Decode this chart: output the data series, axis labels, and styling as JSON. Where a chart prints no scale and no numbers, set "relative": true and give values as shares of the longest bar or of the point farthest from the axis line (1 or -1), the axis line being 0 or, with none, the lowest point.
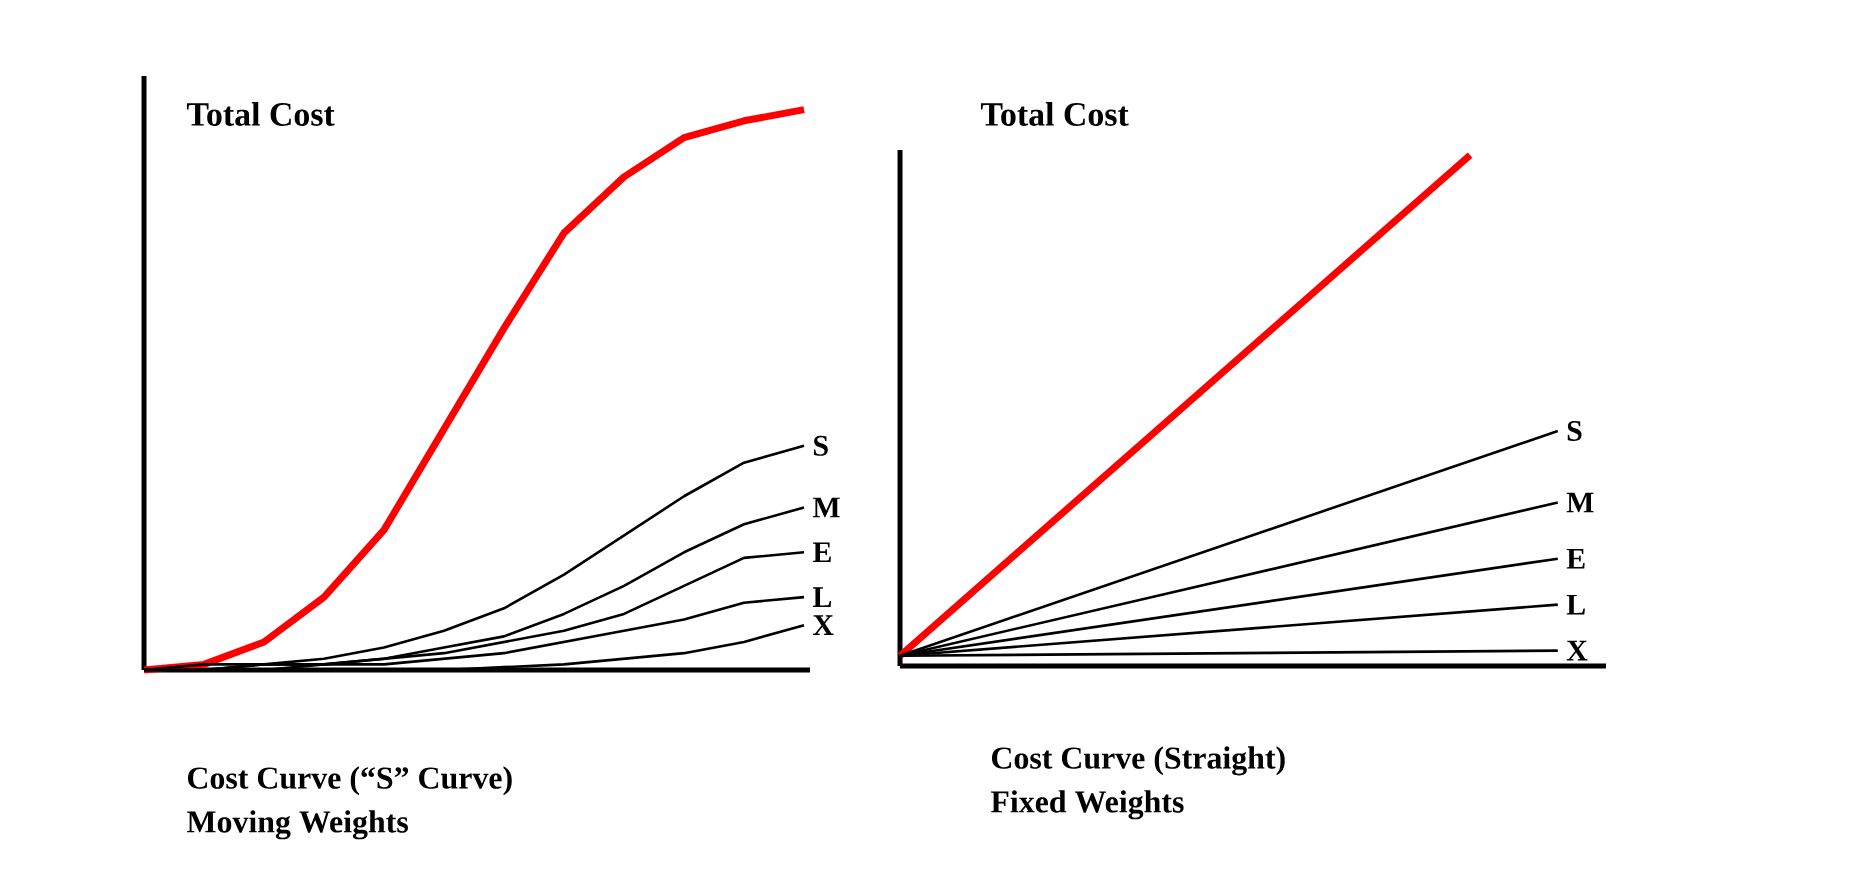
{
  "chart_data": [
    {
      "type": "line",
      "relative": true,
      "ylabel": "Total Cost",
      "title": "Cost Curve (“S” Curve)",
      "subtitle": "Moving Weights",
      "categories": [
        null,
        null,
        null,
        null,
        null,
        null,
        null,
        null,
        null,
        null,
        null,
        null
      ],
      "series": [
        {
          "color": "#ff0000",
          "values": [
            0,
            0.01,
            0.05,
            0.13,
            0.25,
            0.43,
            0.61,
            0.78,
            0.88,
            0.95,
            0.98,
            1
          ]
        },
        {
          "name": "S",
          "color": "#000000",
          "values": [
            0,
            0.01,
            0.01,
            0.02,
            0.04,
            0.07,
            0.11,
            0.17,
            0.24,
            0.31,
            0.37,
            0.4
          ]
        },
        {
          "name": "M",
          "color": "#000000",
          "values": [
            0,
            0,
            0.01,
            0.01,
            0.02,
            0.04,
            0.06,
            0.1,
            0.15,
            0.21,
            0.26,
            0.29
          ]
        },
        {
          "name": "E",
          "color": "#000000",
          "values": [
            0,
            0,
            0.01,
            0.01,
            0.02,
            0.03,
            0.05,
            0.07,
            0.1,
            0.15,
            0.2,
            0.21
          ]
        },
        {
          "name": "L",
          "color": "#000000",
          "values": [
            0,
            0,
            0,
            0.01,
            0.01,
            0.02,
            0.03,
            0.05,
            0.07,
            0.09,
            0.12,
            0.13
          ]
        },
        {
          "name": "X",
          "color": "#000000",
          "values": [
            0,
            0,
            0,
            0,
            0,
            0,
            0.005,
            0.01,
            0.02,
            0.03,
            0.05,
            0.08
          ]
        }
      ]
    },
    {
      "type": "line",
      "relative": true,
      "ylabel": "Total Cost",
      "title": "Cost Curve (Straight)",
      "subtitle": "Fixed Weights",
      "categories": [
        null,
        null,
        null,
        null,
        null,
        null,
        null,
        null,
        null,
        null,
        null,
        null,
        null,
        null,
        null,
        null
      ],
      "series": [
        {
          "color": "#ff0000",
          "values": [
            0.02,
            null,
            null,
            null,
            null,
            null,
            null,
            null,
            null,
            null,
            null,
            null,
            null,
            1,
            null,
            null
          ]
        },
        {
          "name": "S",
          "color": "#000000",
          "values": [
            0.02,
            null,
            null,
            null,
            null,
            null,
            null,
            null,
            null,
            null,
            null,
            null,
            null,
            null,
            null,
            0.46
          ]
        },
        {
          "name": "M",
          "color": "#000000",
          "values": [
            0.02,
            null,
            null,
            null,
            null,
            null,
            null,
            null,
            null,
            null,
            null,
            null,
            null,
            null,
            null,
            0.32
          ]
        },
        {
          "name": "E",
          "color": "#000000",
          "values": [
            0.02,
            null,
            null,
            null,
            null,
            null,
            null,
            null,
            null,
            null,
            null,
            null,
            null,
            null,
            null,
            0.21
          ]
        },
        {
          "name": "L",
          "color": "#000000",
          "values": [
            0.02,
            null,
            null,
            null,
            null,
            null,
            null,
            null,
            null,
            null,
            null,
            null,
            null,
            null,
            null,
            0.12
          ]
        },
        {
          "name": "X",
          "color": "#000000",
          "values": [
            0.02,
            null,
            null,
            null,
            null,
            null,
            null,
            null,
            null,
            null,
            null,
            null,
            null,
            null,
            null,
            0.03
          ]
        }
      ]
    }
  ]
}
